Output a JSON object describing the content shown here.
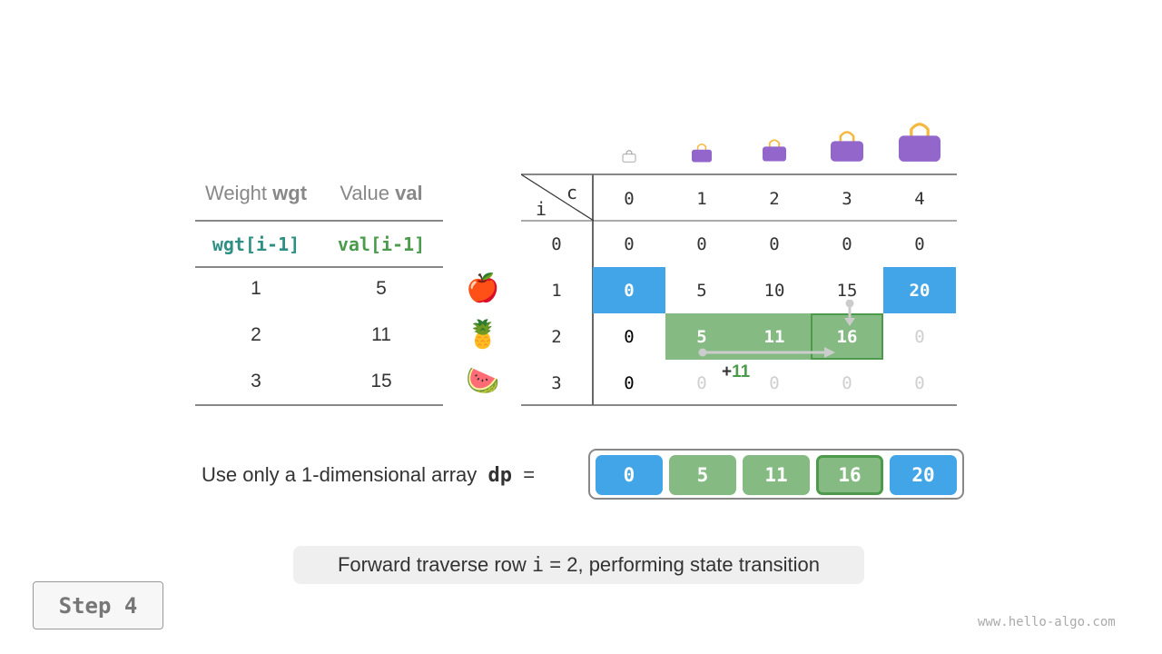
{
  "colors": {
    "blue": "#42a5e8",
    "green": "#85bb83",
    "green_border": "#4e9a4c",
    "teal": "#2f8f84",
    "val_green": "#4b9b4c",
    "faded": "#cfcfcf",
    "bag": "#9366cc"
  },
  "items_table": {
    "headers": [
      {
        "normal": "Weight ",
        "bold": "wgt"
      },
      {
        "normal": "Value ",
        "bold": "val"
      }
    ],
    "subheaders": [
      "wgt[i-1]",
      "val[i-1]"
    ],
    "rows": [
      {
        "wgt": "1",
        "val": "5",
        "icon": "apple-icon",
        "emoji": "🍎"
      },
      {
        "wgt": "2",
        "val": "11",
        "icon": "pineapple-icon",
        "emoji": "🍍"
      },
      {
        "wgt": "3",
        "val": "15",
        "icon": "watermelon-icon",
        "emoji": "🍉"
      }
    ]
  },
  "dp_table": {
    "corner_c": "c",
    "corner_i": "i",
    "capacities": [
      "0",
      "1",
      "2",
      "3",
      "4"
    ],
    "rows": [
      {
        "i": "0",
        "cells": [
          {
            "v": "0",
            "s": "normal"
          },
          {
            "v": "0",
            "s": "normal"
          },
          {
            "v": "0",
            "s": "normal"
          },
          {
            "v": "0",
            "s": "normal"
          },
          {
            "v": "0",
            "s": "normal"
          }
        ]
      },
      {
        "i": "1",
        "cells": [
          {
            "v": "0",
            "s": "blue"
          },
          {
            "v": "5",
            "s": "normal"
          },
          {
            "v": "10",
            "s": "normal"
          },
          {
            "v": "15",
            "s": "normal"
          },
          {
            "v": "20",
            "s": "blue"
          }
        ]
      },
      {
        "i": "2",
        "cells": [
          {
            "v": "0",
            "s": "bold"
          },
          {
            "v": "5",
            "s": "green"
          },
          {
            "v": "11",
            "s": "green"
          },
          {
            "v": "16",
            "s": "green-current"
          },
          {
            "v": "0",
            "s": "faded"
          }
        ]
      },
      {
        "i": "3",
        "cells": [
          {
            "v": "0",
            "s": "bold"
          },
          {
            "v": "0",
            "s": "faded"
          },
          {
            "v": "0",
            "s": "faded"
          },
          {
            "v": "0",
            "s": "faded"
          },
          {
            "v": "0",
            "s": "faded"
          }
        ]
      }
    ],
    "annotation_plus": "+",
    "annotation_value": "11"
  },
  "dp_array": {
    "label": "Use only a 1-dimensional array",
    "name": "dp",
    "eq": "=",
    "cells": [
      {
        "v": "0",
        "s": "blue"
      },
      {
        "v": "5",
        "s": "green"
      },
      {
        "v": "11",
        "s": "green"
      },
      {
        "v": "16",
        "s": "green-current"
      },
      {
        "v": "20",
        "s": "blue"
      }
    ]
  },
  "caption": {
    "before": "Forward traverse row ",
    "code": "i",
    "after": " = 2, performing state transition"
  },
  "step_label": "Step 4",
  "watermark": "www.hello-algo.com"
}
